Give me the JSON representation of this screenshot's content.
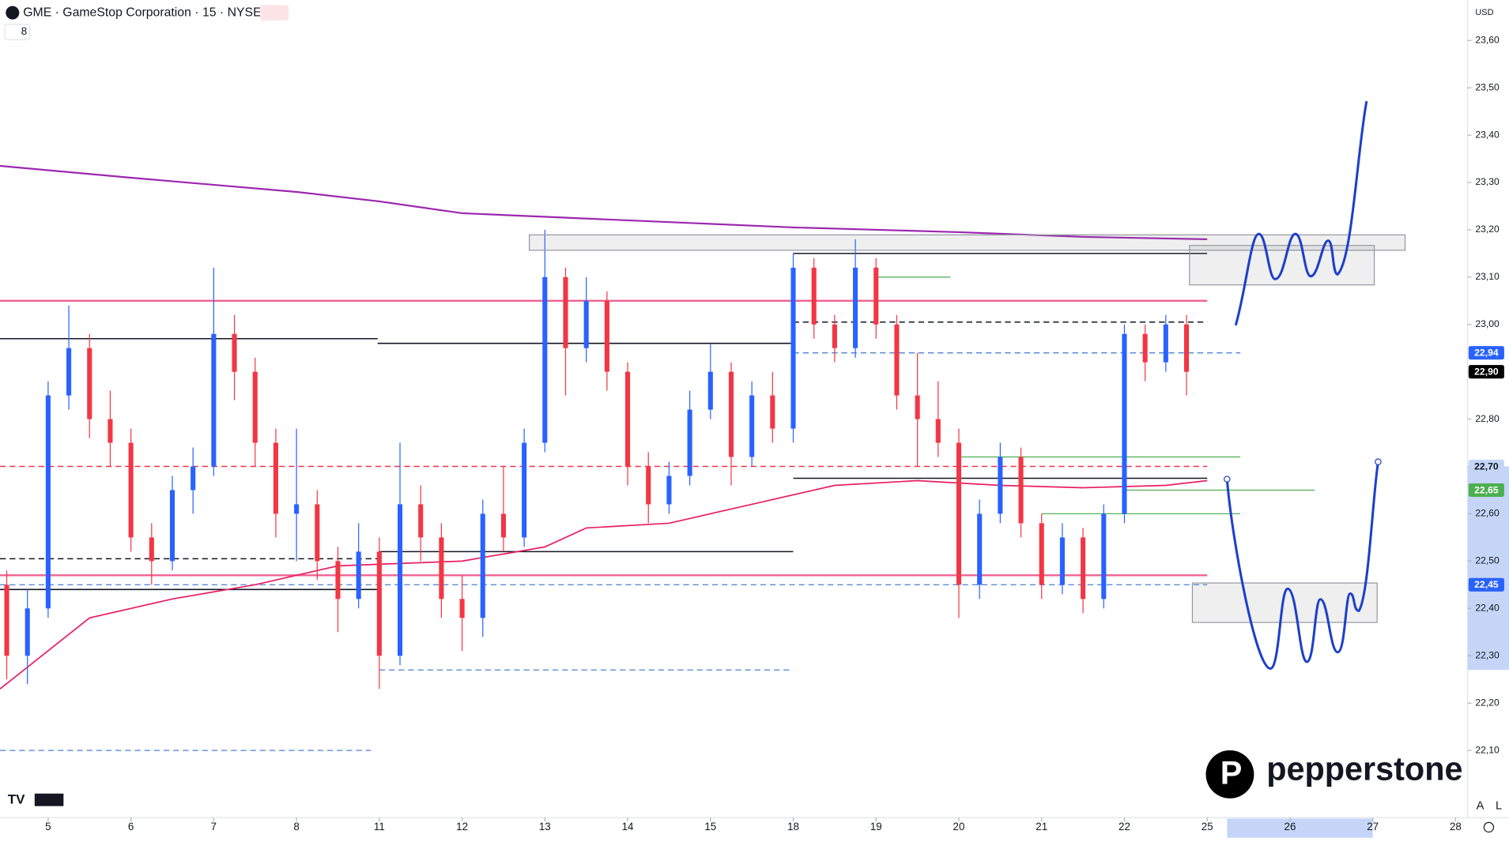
{
  "header": {
    "symbol": "GME · GameStop Corporation · 15 · NYSE",
    "interval": "8",
    "currency": "USD"
  },
  "footer": {
    "brand": "pepperstone",
    "auto": "A",
    "log": "L"
  },
  "chart_data": {
    "type": "candlestick",
    "xlim": [
      -0.5814,
      17.1453
    ],
    "ylim": [
      21.958,
      23.685
    ],
    "xticks": [
      {
        "value": 0,
        "label": "5"
      },
      {
        "value": 1,
        "label": "6"
      },
      {
        "value": 2,
        "label": "7"
      },
      {
        "value": 3,
        "label": "8"
      },
      {
        "value": 4,
        "label": "11"
      },
      {
        "value": 5,
        "label": "12"
      },
      {
        "value": 6,
        "label": "13"
      },
      {
        "value": 7,
        "label": "14"
      },
      {
        "value": 8,
        "label": "15"
      },
      {
        "value": 9,
        "label": "18"
      },
      {
        "value": 10,
        "label": "19"
      },
      {
        "value": 11,
        "label": "20"
      },
      {
        "value": 12,
        "label": "21"
      },
      {
        "value": 13,
        "label": "22"
      },
      {
        "value": 14,
        "label": "25"
      },
      {
        "value": 15,
        "label": "26"
      },
      {
        "value": 16,
        "label": "27"
      },
      {
        "value": 17,
        "label": "28"
      }
    ],
    "yticks": [
      {
        "value": 22.1,
        "label": "22,10"
      },
      {
        "value": 22.2,
        "label": "22,20"
      },
      {
        "value": 22.3,
        "label": "22,30"
      },
      {
        "value": 22.4,
        "label": "22,40"
      },
      {
        "value": 22.5,
        "label": "22,50"
      },
      {
        "value": 22.6,
        "label": "22,60"
      },
      {
        "value": 22.7,
        "label": "22,70"
      },
      {
        "value": 22.8,
        "label": "22,80"
      },
      {
        "value": 22.9,
        "label": "22,90"
      },
      {
        "value": 23.0,
        "label": "23,00"
      },
      {
        "value": 23.1,
        "label": "23,10"
      },
      {
        "value": 23.2,
        "label": "23,20"
      },
      {
        "value": 23.3,
        "label": "23,30"
      },
      {
        "value": 23.4,
        "label": "23,40"
      },
      {
        "value": 23.5,
        "label": "23,50"
      },
      {
        "value": 23.6,
        "label": "23,60"
      }
    ],
    "up_color": "#2962ff",
    "down_color": "#f23645",
    "x": [
      -0.5,
      -0.25,
      0,
      0.25,
      0.5,
      0.75,
      1,
      1.25,
      1.5,
      1.75,
      2,
      2.25,
      2.5,
      2.75,
      3,
      3.25,
      3.5,
      3.75,
      4,
      4.25,
      4.5,
      4.75,
      5,
      5.25,
      5.5,
      5.75,
      6,
      6.25,
      6.5,
      6.75,
      7,
      7.25,
      7.5,
      7.75,
      8,
      8.25,
      8.5,
      8.75,
      9,
      9.25,
      9.5,
      9.75,
      10,
      10.25,
      10.5,
      10.75,
      11,
      11.25,
      11.5,
      11.75,
      12,
      12.25,
      12.5,
      12.75,
      13,
      13.25,
      13.5,
      13.75
    ],
    "open": [
      22.45,
      22.3,
      22.4,
      22.85,
      22.95,
      22.8,
      22.75,
      22.55,
      22.5,
      22.65,
      22.7,
      22.98,
      22.9,
      22.75,
      22.6,
      22.62,
      22.5,
      22.42,
      22.52,
      22.3,
      22.62,
      22.55,
      22.42,
      22.38,
      22.6,
      22.55,
      22.75,
      23.1,
      22.95,
      23.05,
      22.9,
      22.7,
      22.62,
      22.68,
      22.82,
      22.9,
      22.72,
      22.85,
      22.78,
      23.12,
      23.0,
      22.95,
      23.12,
      23.0,
      22.85,
      22.8,
      22.75,
      22.45,
      22.6,
      22.72,
      22.58,
      22.45,
      22.55,
      22.42,
      22.6,
      22.98,
      22.92,
      23.0
    ],
    "high": [
      22.48,
      22.44,
      22.88,
      23.04,
      22.98,
      22.86,
      22.78,
      22.58,
      22.68,
      22.74,
      23.12,
      23.02,
      22.93,
      22.78,
      22.78,
      22.65,
      22.53,
      22.58,
      22.55,
      22.75,
      22.66,
      22.58,
      22.47,
      22.63,
      22.7,
      22.78,
      23.2,
      23.12,
      23.1,
      23.07,
      22.92,
      22.73,
      22.71,
      22.86,
      22.96,
      22.92,
      22.88,
      22.9,
      23.15,
      23.14,
      23.02,
      23.18,
      23.14,
      23.02,
      22.94,
      22.88,
      22.78,
      22.63,
      22.75,
      22.74,
      22.6,
      22.58,
      22.57,
      22.62,
      23.0,
      23.0,
      23.02,
      23.02
    ],
    "low": [
      22.25,
      22.24,
      22.38,
      22.82,
      22.76,
      22.7,
      22.52,
      22.45,
      22.48,
      22.6,
      22.68,
      22.84,
      22.7,
      22.55,
      22.5,
      22.46,
      22.35,
      22.4,
      22.23,
      22.28,
      22.5,
      22.38,
      22.31,
      22.34,
      22.52,
      22.53,
      22.73,
      22.85,
      22.92,
      22.86,
      22.66,
      22.58,
      22.6,
      22.66,
      22.8,
      22.66,
      22.7,
      22.75,
      22.75,
      22.97,
      22.92,
      22.93,
      22.97,
      22.82,
      22.7,
      22.72,
      22.38,
      22.42,
      22.58,
      22.55,
      22.42,
      22.43,
      22.39,
      22.4,
      22.58,
      22.88,
      22.9,
      22.85
    ],
    "close": [
      22.3,
      22.4,
      22.85,
      22.95,
      22.8,
      22.75,
      22.55,
      22.5,
      22.65,
      22.7,
      22.98,
      22.9,
      22.75,
      22.6,
      22.62,
      22.5,
      22.42,
      22.52,
      22.3,
      22.62,
      22.55,
      22.42,
      22.38,
      22.6,
      22.55,
      22.75,
      23.1,
      22.95,
      23.05,
      22.9,
      22.7,
      22.62,
      22.68,
      22.82,
      22.9,
      22.72,
      22.85,
      22.78,
      23.12,
      23.0,
      22.95,
      23.12,
      23.0,
      22.85,
      22.8,
      22.75,
      22.45,
      22.6,
      22.72,
      22.58,
      22.45,
      22.55,
      22.42,
      22.6,
      22.98,
      22.92,
      23.0,
      22.9
    ],
    "ma": {
      "color": "#9c27b0",
      "x": [
        -0.5814,
        1,
        3,
        4,
        5,
        7,
        9,
        11,
        12.5,
        14
      ],
      "values": [
        23.335,
        23.31,
        23.28,
        23.26,
        23.235,
        23.22,
        23.205,
        23.195,
        23.185,
        23.18
      ]
    },
    "vwap": {
      "color": "#e91e63",
      "x": [
        -0.5814,
        0.5,
        1.5,
        2.5,
        3.5,
        5,
        6,
        6.5,
        7.5,
        8.5,
        9.5,
        10.5,
        11.5,
        12.5,
        13.5,
        14
      ],
      "values": [
        22.23,
        22.38,
        22.42,
        22.45,
        22.49,
        22.5,
        22.53,
        22.57,
        22.58,
        22.62,
        22.66,
        22.67,
        22.66,
        22.655,
        22.66,
        22.67
      ]
    },
    "levels": [
      {
        "value": 23.05,
        "from": -0.5814,
        "to": 14,
        "color": "#f06292",
        "style": "thick"
      },
      {
        "value": 22.47,
        "from": -0.5814,
        "to": 14,
        "color": "#f06292",
        "style": "thick"
      },
      {
        "value": 22.7,
        "from": -0.5814,
        "to": 14,
        "color": "#f23645",
        "style": "dashed"
      },
      {
        "value": 22.97,
        "from": -0.5814,
        "to": 3.98,
        "color": "#131722",
        "style": "solid"
      },
      {
        "value": 22.96,
        "from": 3.98,
        "to": 9,
        "color": "#131722",
        "style": "solid"
      },
      {
        "value": 22.505,
        "from": -0.5814,
        "to": 4,
        "color": "#131722",
        "style": "dashed"
      },
      {
        "value": 22.44,
        "from": -0.5814,
        "to": 3.98,
        "color": "#131722",
        "style": "solid"
      },
      {
        "value": 22.52,
        "from": 4,
        "to": 9,
        "color": "#131722",
        "style": "solid"
      },
      {
        "value": 23.15,
        "from": 9,
        "to": 14,
        "color": "#131722",
        "style": "solid"
      },
      {
        "value": 23.005,
        "from": 9,
        "to": 14,
        "color": "#131722",
        "style": "dashed"
      },
      {
        "value": 22.675,
        "from": 9,
        "to": 14,
        "color": "#131722",
        "style": "solid"
      },
      {
        "value": 22.45,
        "from": -0.5814,
        "to": 14,
        "color": "#5b8bd6",
        "style": "dashed"
      },
      {
        "value": 22.27,
        "from": 4,
        "to": 9,
        "color": "#5b8bd6",
        "style": "dashed"
      },
      {
        "value": 22.1,
        "from": -0.5814,
        "to": 3.9,
        "color": "#5b8bd6",
        "style": "dashed"
      },
      {
        "value": 22.94,
        "from": 9,
        "to": 14.4,
        "color": "#5b8bd6",
        "style": "dashed"
      },
      {
        "value": 23.1,
        "from": 10,
        "to": 10.9,
        "color": "#4caf50",
        "style": "thin"
      },
      {
        "value": 22.72,
        "from": 11,
        "to": 14.4,
        "color": "#4caf50",
        "style": "thin"
      },
      {
        "value": 22.65,
        "from": 13,
        "to": 15.3,
        "color": "#4caf50",
        "style": "thin"
      },
      {
        "value": 22.6,
        "from": 12,
        "to": 14.4,
        "color": "#4caf50",
        "style": "thin"
      }
    ],
    "y_highlight": [
      22.27,
      22.7
    ],
    "x_highlight": [
      14.24,
      16.0
    ],
    "price_labels": [
      {
        "value": 22.94,
        "label": "22,94",
        "color": "#2962ff",
        "text_color": "#ffffff"
      },
      {
        "value": 22.9,
        "label": "22,90",
        "color": "#000000",
        "text_color": "#ffffff"
      },
      {
        "value": 22.7,
        "label": "22,70",
        "color": "#c5d5f7",
        "text_color": "#131722"
      },
      {
        "value": 22.65,
        "label": "22,65",
        "color": "#4caf50",
        "text_color": "#ffffff"
      },
      {
        "value": 22.45,
        "label": "22,45",
        "color": "#2962ff",
        "text_color": "#ffffff"
      }
    ]
  }
}
